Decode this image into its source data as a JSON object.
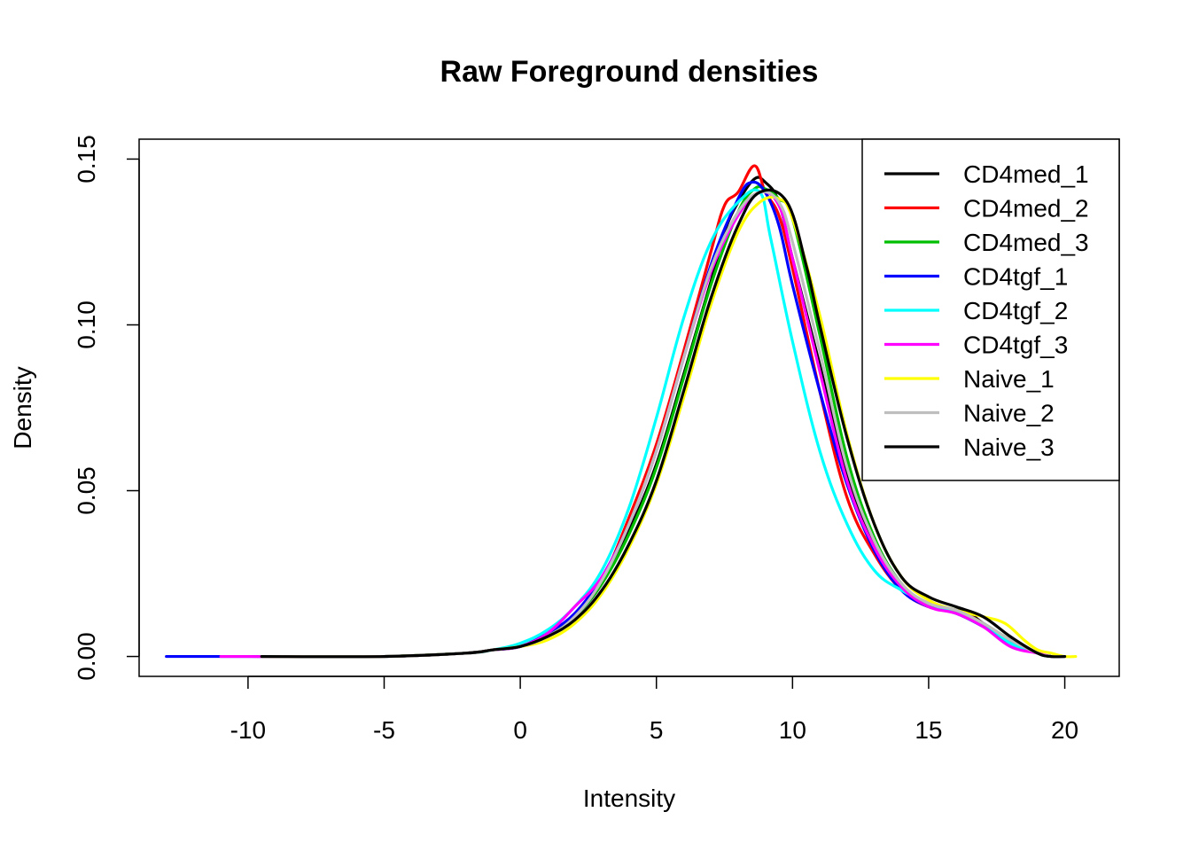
{
  "chart_data": {
    "type": "line",
    "title": "Raw Foreground densities",
    "xlabel": "Intensity",
    "ylabel": "Density",
    "xlim": [
      -14,
      22
    ],
    "ylim": [
      -0.006,
      0.156
    ],
    "x_ticks": [
      -10,
      -5,
      0,
      5,
      10,
      15,
      20
    ],
    "x_tick_labels": [
      "-10",
      "-5",
      "0",
      "5",
      "10",
      "15",
      "20"
    ],
    "y_ticks": [
      0.0,
      0.05,
      0.1,
      0.15
    ],
    "y_tick_labels": [
      "0.00",
      "0.05",
      "0.10",
      "0.15"
    ],
    "grid": false,
    "legend_position": "top-right",
    "series": [
      {
        "name": "CD4med_1",
        "color": "#000000",
        "x": [
          -9.5,
          -5,
          -2,
          -1,
          0,
          1,
          2,
          3,
          4,
          5,
          6,
          7,
          7.5,
          8,
          8.6,
          9,
          9.5,
          10,
          11,
          12,
          13,
          14,
          15,
          16,
          16.5,
          17,
          18,
          19,
          19.5,
          20
        ],
        "y": [
          0,
          0,
          0.001,
          0.002,
          0.003,
          0.006,
          0.012,
          0.022,
          0.038,
          0.058,
          0.085,
          0.113,
          0.128,
          0.137,
          0.144,
          0.143,
          0.137,
          0.12,
          0.088,
          0.055,
          0.033,
          0.021,
          0.015,
          0.014,
          0.013,
          0.01,
          0.005,
          0.001,
          0,
          0
        ]
      },
      {
        "name": "CD4med_2",
        "color": "#ff0000",
        "x": [
          -9.5,
          -5,
          -2,
          -1,
          0,
          1,
          2,
          3,
          4,
          5,
          6,
          7,
          7.5,
          8,
          8.6,
          9,
          9.5,
          10,
          11,
          12,
          13,
          14,
          15,
          16,
          17,
          18,
          19,
          19.5,
          20
        ],
        "y": [
          0,
          0,
          0.001,
          0.002,
          0.003,
          0.006,
          0.012,
          0.023,
          0.042,
          0.064,
          0.092,
          0.122,
          0.136,
          0.14,
          0.148,
          0.14,
          0.133,
          0.117,
          0.08,
          0.048,
          0.031,
          0.02,
          0.015,
          0.014,
          0.01,
          0.004,
          0.001,
          0,
          0
        ]
      },
      {
        "name": "CD4med_3",
        "color": "#00bf00",
        "x": [
          -9.5,
          -5,
          -2,
          -1,
          0,
          1,
          2,
          3,
          4,
          5,
          6,
          7,
          8,
          8.6,
          9,
          9.5,
          10,
          11,
          12,
          13,
          14,
          15,
          16,
          17,
          18,
          19,
          19.5,
          20
        ],
        "y": [
          0,
          0,
          0.001,
          0.002,
          0.003,
          0.006,
          0.012,
          0.022,
          0.037,
          0.057,
          0.084,
          0.112,
          0.134,
          0.141,
          0.141,
          0.138,
          0.132,
          0.097,
          0.06,
          0.036,
          0.022,
          0.016,
          0.014,
          0.01,
          0.005,
          0.001,
          0,
          0
        ]
      },
      {
        "name": "CD4tgf_1",
        "color": "#0000ff",
        "x": [
          -13,
          -10,
          -5,
          -2,
          -1,
          0,
          1,
          2,
          3,
          4,
          5,
          6,
          7,
          8,
          8.5,
          9,
          9.5,
          10,
          11,
          12,
          13,
          14,
          15,
          16,
          17,
          18,
          19,
          19.5,
          20
        ],
        "y": [
          0,
          0,
          0,
          0.001,
          0.002,
          0.003,
          0.007,
          0.013,
          0.024,
          0.04,
          0.062,
          0.09,
          0.118,
          0.138,
          0.143,
          0.14,
          0.13,
          0.112,
          0.08,
          0.052,
          0.032,
          0.02,
          0.015,
          0.013,
          0.009,
          0.004,
          0.001,
          0,
          0
        ]
      },
      {
        "name": "CD4tgf_2",
        "color": "#00ffff",
        "x": [
          -9.5,
          -5,
          -2,
          -1,
          0,
          1,
          2,
          3,
          4,
          5,
          6,
          7,
          8,
          8.8,
          9.2,
          10,
          11,
          12,
          13,
          14,
          15,
          16,
          17,
          18,
          19,
          19.5,
          20
        ],
        "y": [
          0,
          0,
          0.001,
          0.002,
          0.004,
          0.008,
          0.015,
          0.026,
          0.045,
          0.072,
          0.102,
          0.125,
          0.137,
          0.14,
          0.126,
          0.095,
          0.062,
          0.04,
          0.026,
          0.02,
          0.016,
          0.013,
          0.01,
          0.004,
          0.001,
          0,
          0
        ]
      },
      {
        "name": "CD4tgf_3",
        "color": "#ff00ff",
        "x": [
          -11,
          -10,
          -5,
          -2,
          -1,
          0,
          1,
          2,
          3,
          4,
          5,
          6,
          7,
          8,
          8.8,
          9.5,
          10,
          11,
          12,
          13,
          14,
          15,
          16,
          17,
          18,
          19,
          19.5,
          20
        ],
        "y": [
          0,
          0,
          0,
          0.001,
          0.002,
          0.003,
          0.007,
          0.015,
          0.024,
          0.04,
          0.062,
          0.09,
          0.116,
          0.133,
          0.14,
          0.136,
          0.12,
          0.086,
          0.053,
          0.033,
          0.021,
          0.015,
          0.013,
          0.009,
          0.003,
          0.001,
          0,
          0
        ]
      },
      {
        "name": "Naive_1",
        "color": "#ffff00",
        "x": [
          -9.5,
          -5,
          -2,
          -1,
          0,
          1,
          2,
          3,
          4,
          5,
          6,
          7,
          8,
          8.8,
          9.5,
          10,
          11,
          12,
          13,
          14,
          15,
          16,
          17,
          17.8,
          18.5,
          19,
          19.5,
          20,
          20.4
        ],
        "y": [
          0,
          0,
          0.001,
          0.002,
          0.003,
          0.005,
          0.01,
          0.019,
          0.033,
          0.052,
          0.078,
          0.106,
          0.128,
          0.137,
          0.138,
          0.132,
          0.103,
          0.067,
          0.04,
          0.024,
          0.017,
          0.014,
          0.012,
          0.01,
          0.005,
          0.002,
          0.001,
          0,
          0
        ]
      },
      {
        "name": "Naive_2",
        "color": "#bebebe",
        "x": [
          -9.5,
          -5,
          -2,
          -1,
          0,
          1,
          2,
          3,
          4,
          5,
          6,
          7,
          8,
          8.8,
          9.5,
          10,
          11,
          12,
          13,
          14,
          15,
          16,
          17,
          18,
          19,
          19.5,
          20
        ],
        "y": [
          0,
          0,
          0.001,
          0.002,
          0.003,
          0.006,
          0.012,
          0.023,
          0.04,
          0.062,
          0.09,
          0.117,
          0.134,
          0.14,
          0.137,
          0.125,
          0.092,
          0.057,
          0.035,
          0.022,
          0.016,
          0.014,
          0.01,
          0.005,
          0.001,
          0,
          0
        ]
      },
      {
        "name": "Naive_3",
        "color": "#000000",
        "x": [
          -9.5,
          -5,
          -2,
          -1,
          0,
          1,
          2,
          3,
          4,
          5,
          6,
          7,
          8,
          8.8,
          9.8,
          10.5,
          11,
          12,
          13,
          14,
          15,
          16,
          17,
          18,
          19,
          19.5,
          20
        ],
        "y": [
          0,
          0,
          0.001,
          0.002,
          0.003,
          0.006,
          0.011,
          0.02,
          0.034,
          0.053,
          0.08,
          0.108,
          0.13,
          0.14,
          0.137,
          0.118,
          0.1,
          0.066,
          0.04,
          0.024,
          0.018,
          0.015,
          0.012,
          0.006,
          0.001,
          0,
          0
        ]
      }
    ]
  }
}
